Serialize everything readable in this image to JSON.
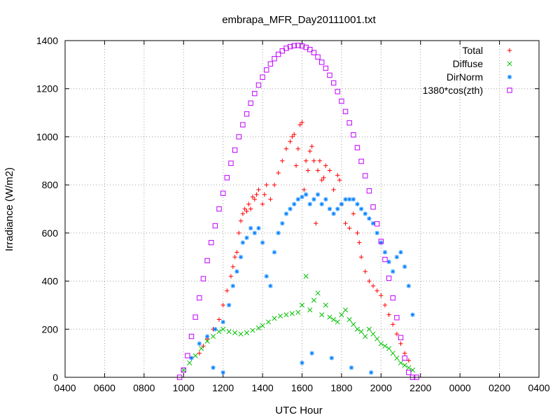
{
  "chart_data": {
    "type": "scatter",
    "title": "embrapa_MFR_Day20111001.txt",
    "xlabel": "UTC Hour",
    "ylabel": "Irradiance (W/m2)",
    "xlim": [
      4,
      28
    ],
    "ylim": [
      0,
      1400
    ],
    "x_tick_values": [
      4,
      6,
      8,
      10,
      12,
      14,
      16,
      18,
      20,
      22,
      24,
      26,
      28
    ],
    "x_tick_labels": [
      "0400",
      "0600",
      "0800",
      "1000",
      "1200",
      "1400",
      "1600",
      "1800",
      "2000",
      "2200",
      "0000",
      "0200",
      "0400"
    ],
    "y_tick_values": [
      0,
      200,
      400,
      600,
      800,
      1000,
      1200,
      1400
    ],
    "y_tick_labels": [
      "0",
      "200",
      "400",
      "600",
      "800",
      "1000",
      "1200",
      "1400"
    ],
    "grid": true,
    "legend_position": "top-right",
    "series": [
      {
        "name": "Total",
        "marker": "plus",
        "color": "#ff0000",
        "x": [
          10.8,
          11.0,
          11.2,
          11.5,
          11.8,
          12.0,
          12.2,
          12.4,
          12.5,
          12.6,
          12.7,
          12.8,
          12.9,
          13.0,
          13.1,
          13.2,
          13.3,
          13.4,
          13.5,
          13.6,
          13.7,
          13.8,
          14.0,
          14.1,
          14.2,
          14.4,
          14.6,
          14.8,
          15.0,
          15.2,
          15.4,
          15.5,
          15.6,
          15.7,
          15.8,
          15.9,
          16.0,
          16.1,
          16.2,
          16.3,
          16.4,
          16.5,
          16.6,
          16.7,
          16.8,
          16.9,
          17.0,
          17.1,
          17.2,
          17.4,
          17.6,
          17.8,
          17.9,
          18.0,
          18.2,
          18.4,
          18.6,
          18.8,
          18.9,
          19.0,
          19.2,
          19.4,
          19.6,
          19.8,
          20.0,
          20.2,
          20.4,
          20.6,
          20.8,
          21.0,
          21.2,
          21.4
        ],
        "y": [
          100,
          130,
          160,
          200,
          240,
          300,
          360,
          420,
          460,
          500,
          520,
          600,
          650,
          680,
          700,
          690,
          720,
          700,
          750,
          740,
          760,
          780,
          720,
          760,
          800,
          740,
          800,
          850,
          900,
          950,
          980,
          1000,
          1010,
          880,
          950,
          1050,
          1060,
          780,
          900,
          860,
          940,
          960,
          900,
          640,
          860,
          900,
          820,
          830,
          880,
          860,
          780,
          840,
          820,
          720,
          640,
          620,
          680,
          600,
          560,
          500,
          440,
          400,
          380,
          360,
          340,
          300,
          260,
          220,
          180,
          140,
          100,
          70
        ]
      },
      {
        "name": "Diffuse",
        "marker": "cross",
        "color": "#00c000",
        "x": [
          10.0,
          10.3,
          10.6,
          10.9,
          11.2,
          11.5,
          11.8,
          12.0,
          12.3,
          12.6,
          12.9,
          13.2,
          13.5,
          13.8,
          14.0,
          14.3,
          14.6,
          14.9,
          15.2,
          15.5,
          15.8,
          16.0,
          16.2,
          16.4,
          16.6,
          16.8,
          17.0,
          17.2,
          17.4,
          17.6,
          17.8,
          18.0,
          18.2,
          18.4,
          18.6,
          18.8,
          19.0,
          19.2,
          19.4,
          19.6,
          19.8,
          20.0,
          20.2,
          20.4,
          20.6,
          20.8,
          21.0,
          21.2,
          21.4,
          21.6
        ],
        "y": [
          30,
          60,
          90,
          120,
          150,
          170,
          190,
          200,
          190,
          185,
          180,
          185,
          195,
          205,
          215,
          230,
          245,
          255,
          260,
          265,
          270,
          300,
          420,
          280,
          320,
          350,
          260,
          300,
          250,
          240,
          230,
          260,
          280,
          240,
          220,
          200,
          190,
          170,
          200,
          180,
          160,
          140,
          130,
          120,
          100,
          80,
          60,
          50,
          40,
          30
        ]
      },
      {
        "name": "DirNorm",
        "marker": "star",
        "color": "#0080ff",
        "x": [
          10.4,
          10.8,
          11.2,
          11.6,
          12.0,
          12.3,
          12.5,
          12.7,
          12.9,
          13.0,
          13.2,
          13.4,
          13.6,
          13.8,
          14.0,
          14.2,
          14.4,
          14.6,
          14.8,
          15.0,
          15.2,
          15.4,
          15.6,
          15.8,
          16.0,
          16.2,
          16.4,
          16.6,
          16.8,
          17.0,
          17.2,
          17.4,
          17.6,
          17.8,
          18.0,
          18.2,
          18.4,
          18.6,
          18.8,
          19.0,
          19.2,
          19.4,
          19.6,
          19.8,
          20.0,
          20.2,
          20.4,
          20.6,
          20.8,
          21.0,
          21.2,
          21.4,
          21.6,
          11.5,
          12.0,
          16.0,
          16.5,
          17.5,
          18.5,
          19.5
        ],
        "y": [
          80,
          140,
          170,
          200,
          230,
          300,
          380,
          440,
          500,
          560,
          580,
          620,
          600,
          620,
          560,
          420,
          380,
          520,
          600,
          640,
          680,
          700,
          720,
          740,
          750,
          760,
          720,
          740,
          760,
          720,
          740,
          700,
          680,
          700,
          720,
          740,
          740,
          740,
          720,
          700,
          680,
          660,
          640,
          600,
          560,
          520,
          480,
          440,
          500,
          520,
          460,
          380,
          260,
          40,
          20,
          60,
          100,
          80,
          40,
          20
        ]
      },
      {
        "name": "1380*cos(zth)",
        "marker": "square",
        "color": "#c000ff",
        "x": [
          9.8,
          10.0,
          10.2,
          10.4,
          10.6,
          10.8,
          11.0,
          11.2,
          11.4,
          11.6,
          11.8,
          12.0,
          12.2,
          12.4,
          12.6,
          12.8,
          13.0,
          13.2,
          13.4,
          13.6,
          13.8,
          14.0,
          14.2,
          14.4,
          14.6,
          14.8,
          15.0,
          15.2,
          15.4,
          15.6,
          15.8,
          16.0,
          16.2,
          16.4,
          16.6,
          16.8,
          17.0,
          17.2,
          17.4,
          17.6,
          17.8,
          18.0,
          18.2,
          18.4,
          18.6,
          18.8,
          19.0,
          19.2,
          19.4,
          19.6,
          19.8,
          20.0,
          20.2,
          20.4,
          20.6,
          20.8,
          21.0,
          21.2,
          21.4,
          21.6,
          21.8
        ],
        "y": [
          0,
          30,
          90,
          170,
          250,
          330,
          410,
          485,
          560,
          630,
          700,
          765,
          830,
          890,
          945,
          1000,
          1050,
          1095,
          1140,
          1180,
          1215,
          1248,
          1278,
          1303,
          1325,
          1343,
          1357,
          1368,
          1375,
          1379,
          1380,
          1378,
          1372,
          1363,
          1350,
          1332,
          1310,
          1285,
          1256,
          1224,
          1188,
          1148,
          1105,
          1058,
          1008,
          955,
          898,
          838,
          775,
          708,
          638,
          565,
          490,
          412,
          330,
          248,
          165,
          80,
          20,
          0,
          0
        ]
      }
    ]
  }
}
